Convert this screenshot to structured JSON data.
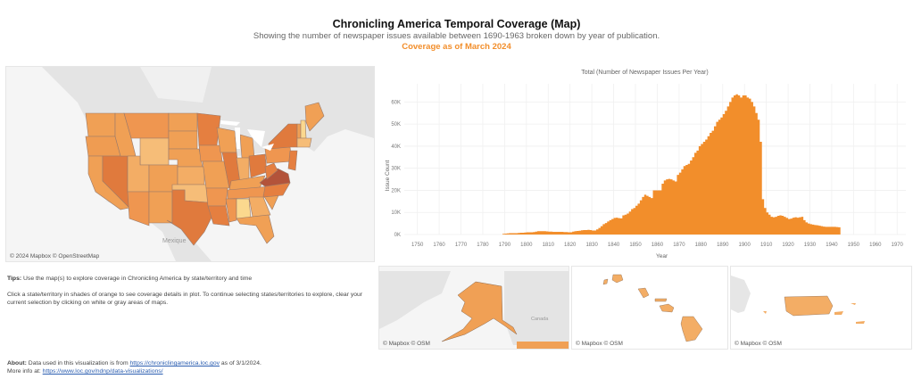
{
  "header": {
    "title": "Chronicling America Temporal Coverage (Map)",
    "subtitle": "Showing the number of newspaper issues available between 1690-1963 broken down by year of publication.",
    "coverage": "Coverage as of March 2024"
  },
  "maps": {
    "main": {
      "credit": "© 2024 Mapbox  © OpenStreetMap",
      "label_mexico": "Mexique"
    },
    "alaska": {
      "credit": "© Mapbox  © OSM",
      "label_canada": "Canada"
    },
    "hawaii": {
      "credit": "© Mapbox  © OSM"
    },
    "puerto_rico": {
      "credit": "© Mapbox  © OSM"
    }
  },
  "colors": {
    "accent": "#f28e2b",
    "map_land": "#e4e4e4",
    "map_water": "#f5f5f5",
    "state_light": "#f6bd78",
    "state_mid": "#f0a055",
    "state_dark": "#e07a3d",
    "state_darkest": "#b3533a",
    "state_pale": "#fbd88e"
  },
  "tips": {
    "label": "Tips:",
    "line1": " Use the map(s) to explore coverage in Chronicling America by state/territory and time",
    "line2": "Click a state/territory in shades of orange to see coverage details in plot. To continue selecting states/territories to explore, clear your current selection by clicking on white or gray areas of maps."
  },
  "about": {
    "label": "About:",
    "text1": " Data used in this visualization is from ",
    "link1": "https://chroniclingamerica.loc.gov",
    "text2": " as of 3/1/2024.",
    "text3": "More info at: ",
    "link2": "https://www.loc.gov/ndnp/data-visualizations/"
  },
  "chart_data": {
    "type": "area",
    "title": "Total (Number of Newspaper Issues Per Year)",
    "xlabel": "Year",
    "ylabel": "Issue Count",
    "xlim": [
      1744,
      1974
    ],
    "ylim": [
      0,
      65000
    ],
    "x_ticks": [
      1750,
      1760,
      1770,
      1780,
      1790,
      1800,
      1810,
      1820,
      1830,
      1840,
      1850,
      1860,
      1870,
      1880,
      1890,
      1900,
      1910,
      1920,
      1930,
      1940,
      1950,
      1960,
      1970
    ],
    "y_ticks": [
      0,
      10000,
      20000,
      30000,
      40000,
      50000,
      60000
    ],
    "y_tick_labels": [
      "0K",
      "10K",
      "20K",
      "30K",
      "40K",
      "50K",
      "60K"
    ],
    "grid": true,
    "series": [
      {
        "name": "Issue Count",
        "color": "#f28e2b",
        "x_start": 1789,
        "values": [
          300,
          400,
          500,
          600,
          600,
          600,
          600,
          700,
          800,
          800,
          900,
          1000,
          1000,
          1000,
          1100,
          1300,
          1500,
          1500,
          1500,
          1500,
          1400,
          1300,
          1300,
          1200,
          1200,
          1200,
          1200,
          1200,
          1100,
          1100,
          1000,
          1000,
          1300,
          1500,
          1600,
          1700,
          1900,
          2000,
          2000,
          2100,
          2000,
          1800,
          1800,
          2300,
          3000,
          3800,
          4700,
          5200,
          5900,
          6500,
          7000,
          7500,
          7600,
          7400,
          7300,
          8700,
          9000,
          9500,
          10400,
          11500,
          12000,
          13000,
          14000,
          15500,
          17000,
          18000,
          17500,
          17000,
          16500,
          20000,
          20000,
          20000,
          20000,
          23000,
          24500,
          25000,
          25200,
          25000,
          24500,
          24000,
          27000,
          28000,
          29500,
          31000,
          31500,
          32000,
          33500,
          35000,
          37000,
          38000,
          40000,
          41000,
          42000,
          43000,
          44500,
          46000,
          47000,
          49000,
          51000,
          52000,
          53000,
          54500,
          56000,
          58000,
          60000,
          62000,
          63000,
          63500,
          63000,
          62000,
          63000,
          63000,
          62000,
          61500,
          60000,
          58000,
          55000,
          52000,
          42000,
          16000,
          12000,
          10000,
          9000,
          8000,
          7800,
          8000,
          8500,
          8700,
          8500,
          8000,
          7500,
          7000,
          7200,
          7600,
          7800,
          7600,
          7800,
          8000,
          6500,
          5500,
          5000,
          4700,
          4500,
          4300,
          4200,
          4000,
          3800,
          3600,
          3500,
          3500,
          3500,
          3500,
          3500,
          3400,
          3300
        ]
      }
    ]
  }
}
